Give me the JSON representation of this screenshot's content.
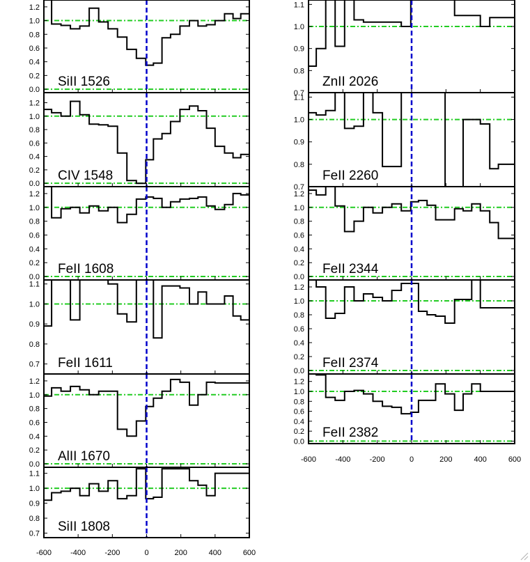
{
  "chart_data": {
    "type": "line",
    "style": {
      "frame_color": "#000000",
      "spectrum_color": "#000000",
      "continuum_color": "#22cc22",
      "zero_velocity_color": "#0000cc"
    },
    "x_ticks": [
      -600,
      -400,
      -200,
      0,
      200,
      400,
      600
    ],
    "xlim": [
      -600,
      600
    ],
    "zero_velocity": 0,
    "panels": [
      {
        "label": "SiII 1526",
        "column": "left",
        "ylim": [
          -0.05,
          1.3
        ],
        "y_ticks": [
          0.0,
          0.2,
          0.4,
          0.6,
          0.8,
          1.0,
          1.2
        ],
        "continuum_levels": [
          1.0,
          0.0
        ],
        "x": [
          -600,
          -555,
          -500,
          -445,
          -390,
          -335,
          -280,
          -225,
          -170,
          -115,
          -60,
          -5,
          40,
          90,
          140,
          195,
          250,
          300,
          350,
          400,
          455,
          505,
          550,
          600
        ],
        "y": [
          1.32,
          0.95,
          0.93,
          0.88,
          0.92,
          1.18,
          0.98,
          0.88,
          0.76,
          0.58,
          0.45,
          0.35,
          0.38,
          0.75,
          0.8,
          0.92,
          1.0,
          0.92,
          0.94,
          1.0,
          1.1,
          1.03,
          1.1,
          1.05
        ]
      },
      {
        "label": "CIV 1548",
        "column": "left",
        "ylim": [
          -0.05,
          1.35
        ],
        "y_ticks": [
          0.0,
          0.2,
          0.4,
          0.6,
          0.8,
          1.0,
          1.2
        ],
        "continuum_levels": [
          1.0,
          0.0
        ],
        "x": [
          -600,
          -555,
          -500,
          -445,
          -390,
          -335,
          -280,
          -225,
          -170,
          -115,
          -60,
          -5,
          40,
          90,
          140,
          195,
          250,
          300,
          350,
          400,
          455,
          505,
          550,
          600
        ],
        "y": [
          1.1,
          1.05,
          1.0,
          1.22,
          1.02,
          0.88,
          0.87,
          0.85,
          0.45,
          0.04,
          0.0,
          0.35,
          0.66,
          0.74,
          0.92,
          1.1,
          1.15,
          1.08,
          0.82,
          0.55,
          0.45,
          0.38,
          0.43,
          0.43
        ]
      },
      {
        "label": "FeII 1608",
        "column": "left",
        "ylim": [
          -0.05,
          1.3
        ],
        "y_ticks": [
          0.0,
          0.2,
          0.4,
          0.6,
          0.8,
          1.0,
          1.2
        ],
        "continuum_levels": [
          1.0,
          0.0
        ],
        "x": [
          -600,
          -555,
          -500,
          -445,
          -390,
          -335,
          -280,
          -225,
          -170,
          -115,
          -60,
          -5,
          40,
          90,
          140,
          195,
          250,
          300,
          350,
          400,
          455,
          505,
          550,
          600
        ],
        "y": [
          1.3,
          0.85,
          0.98,
          1.0,
          0.92,
          1.02,
          0.95,
          1.0,
          0.78,
          0.9,
          1.12,
          1.15,
          1.13,
          1.0,
          1.08,
          1.12,
          1.13,
          1.15,
          1.02,
          0.97,
          1.04,
          1.2,
          1.18,
          1.2
        ]
      },
      {
        "label": "FeII 1611",
        "column": "left",
        "ylim": [
          0.65,
          1.12
        ],
        "y_ticks": [
          0.7,
          0.8,
          0.9,
          1.0,
          1.1
        ],
        "continuum_levels": [
          1.0
        ],
        "x": [
          -600,
          -555,
          -500,
          -445,
          -390,
          -335,
          -280,
          -225,
          -170,
          -115,
          -60,
          -5,
          40,
          90,
          140,
          195,
          250,
          300,
          350,
          400,
          455,
          505,
          550,
          600
        ],
        "y": [
          0.89,
          1.12,
          1.12,
          0.92,
          1.12,
          1.12,
          1.12,
          1.1,
          0.95,
          0.91,
          1.12,
          1.12,
          0.83,
          1.09,
          1.09,
          1.08,
          1.0,
          1.06,
          1.0,
          1.0,
          1.04,
          0.94,
          0.92,
          1.0
        ]
      },
      {
        "label": "AlII 1670",
        "column": "left",
        "ylim": [
          -0.05,
          1.3
        ],
        "y_ticks": [
          0.0,
          0.2,
          0.4,
          0.6,
          0.8,
          1.0,
          1.2
        ],
        "continuum_levels": [
          1.0,
          0.0
        ],
        "x": [
          -600,
          -555,
          -500,
          -445,
          -390,
          -335,
          -280,
          -225,
          -170,
          -115,
          -60,
          -5,
          40,
          90,
          140,
          195,
          250,
          300,
          350,
          400,
          455,
          505,
          550,
          600
        ],
        "y": [
          0.98,
          1.1,
          1.05,
          1.12,
          1.07,
          1.0,
          1.05,
          1.05,
          0.5,
          0.4,
          0.62,
          0.83,
          0.95,
          1.05,
          1.22,
          1.18,
          0.85,
          1.0,
          1.18,
          1.17,
          1.17,
          1.17,
          1.17,
          1.17
        ]
      },
      {
        "label": "SiII 1808",
        "column": "left",
        "ylim": [
          0.67,
          1.14
        ],
        "y_ticks": [
          0.7,
          0.8,
          0.9,
          1.0,
          1.1
        ],
        "continuum_levels": [
          1.0
        ],
        "x": [
          -600,
          -555,
          -500,
          -445,
          -390,
          -335,
          -280,
          -225,
          -170,
          -115,
          -60,
          -5,
          40,
          90,
          140,
          195,
          250,
          300,
          350,
          400,
          455,
          505,
          550,
          600
        ],
        "y": [
          0.92,
          0.97,
          0.98,
          1.0,
          0.95,
          1.03,
          0.98,
          1.05,
          0.93,
          0.95,
          1.13,
          0.93,
          0.94,
          1.13,
          1.13,
          1.13,
          1.05,
          1.02,
          0.95,
          1.1,
          1.1,
          1.1,
          1.1,
          1.1
        ]
      },
      {
        "label": "ZnII 2026",
        "column": "right",
        "ylim": [
          0.7,
          1.12
        ],
        "y_ticks": [
          0.7,
          0.8,
          0.9,
          1.0,
          1.1
        ],
        "continuum_levels": [
          1.0
        ],
        "x": [
          -600,
          -555,
          -500,
          -445,
          -390,
          -335,
          -280,
          -225,
          -170,
          -115,
          -60,
          -5,
          40,
          90,
          140,
          195,
          250,
          300,
          350,
          400,
          455,
          505,
          550,
          600
        ],
        "y": [
          0.82,
          0.9,
          1.12,
          0.91,
          1.12,
          1.03,
          1.02,
          1.02,
          1.02,
          1.02,
          1.0,
          1.12,
          1.12,
          1.12,
          1.12,
          1.12,
          1.05,
          1.05,
          1.05,
          1.0,
          1.04,
          1.04,
          1.04,
          0.92
        ]
      },
      {
        "label": "FeII 2260",
        "column": "right",
        "ylim": [
          0.7,
          1.12
        ],
        "y_ticks": [
          0.7,
          0.8,
          0.9,
          1.0,
          1.1
        ],
        "continuum_levels": [
          1.0
        ],
        "x": [
          -600,
          -555,
          -500,
          -445,
          -390,
          -335,
          -280,
          -225,
          -170,
          -115,
          -60,
          -5,
          40,
          90,
          140,
          195,
          250,
          300,
          350,
          400,
          455,
          505,
          550,
          600
        ],
        "y": [
          1.03,
          1.02,
          1.04,
          1.12,
          0.96,
          0.97,
          1.12,
          1.03,
          0.79,
          0.79,
          1.12,
          1.12,
          1.12,
          1.12,
          1.12,
          0.7,
          0.7,
          1.0,
          1.0,
          0.98,
          0.78,
          0.8,
          0.8,
          0.8
        ]
      },
      {
        "label": "FeII 2344",
        "column": "right",
        "ylim": [
          -0.05,
          1.3
        ],
        "y_ticks": [
          0.0,
          0.2,
          0.4,
          0.6,
          0.8,
          1.0,
          1.2
        ],
        "continuum_levels": [
          1.0,
          0.0
        ],
        "x": [
          -600,
          -555,
          -500,
          -445,
          -390,
          -335,
          -280,
          -225,
          -170,
          -115,
          -60,
          -5,
          40,
          90,
          140,
          195,
          250,
          300,
          350,
          400,
          455,
          505,
          550,
          600
        ],
        "y": [
          1.25,
          1.18,
          1.3,
          1.02,
          0.65,
          0.8,
          1.0,
          0.92,
          1.0,
          1.05,
          0.95,
          1.08,
          1.1,
          1.03,
          0.82,
          0.82,
          0.98,
          0.95,
          1.05,
          0.95,
          0.78,
          0.55,
          0.55,
          0.55
        ]
      },
      {
        "label": "FeII 2374",
        "column": "right",
        "ylim": [
          -0.05,
          1.3
        ],
        "y_ticks": [
          0.0,
          0.2,
          0.4,
          0.6,
          0.8,
          1.0,
          1.2
        ],
        "continuum_levels": [
          1.0,
          0.0
        ],
        "x": [
          -600,
          -555,
          -500,
          -445,
          -390,
          -335,
          -280,
          -225,
          -170,
          -115,
          -60,
          -5,
          40,
          90,
          140,
          195,
          250,
          300,
          350,
          400,
          455,
          505,
          550,
          600
        ],
        "y": [
          1.3,
          1.2,
          0.75,
          0.82,
          1.2,
          1.0,
          1.1,
          1.05,
          1.0,
          1.15,
          1.25,
          1.25,
          0.85,
          0.8,
          0.78,
          0.68,
          1.02,
          1.02,
          1.3,
          0.9,
          0.9,
          0.9,
          0.9,
          0.9
        ]
      },
      {
        "label": "FeII 2382",
        "column": "right",
        "ylim": [
          -0.05,
          1.35
        ],
        "y_ticks": [
          0.0,
          0.2,
          0.4,
          0.6,
          0.8,
          1.0,
          1.2
        ],
        "continuum_levels": [
          1.0,
          0.0
        ],
        "x": [
          -600,
          -555,
          -500,
          -445,
          -390,
          -335,
          -280,
          -225,
          -170,
          -115,
          -60,
          -5,
          40,
          90,
          140,
          195,
          250,
          300,
          350,
          400,
          455,
          505,
          550,
          600
        ],
        "y": [
          1.35,
          1.33,
          0.88,
          0.82,
          1.0,
          1.02,
          0.95,
          0.8,
          0.7,
          0.68,
          0.55,
          0.58,
          0.82,
          0.82,
          1.15,
          0.95,
          0.62,
          0.95,
          1.15,
          1.0,
          1.0,
          1.0,
          1.0,
          1.0
        ]
      }
    ]
  }
}
